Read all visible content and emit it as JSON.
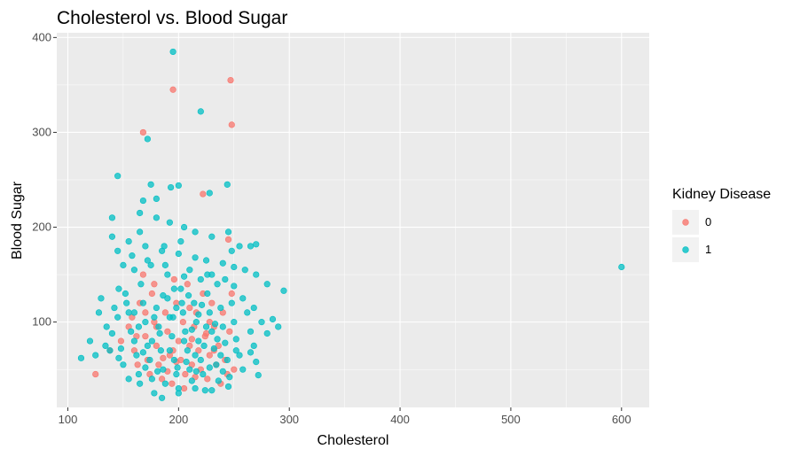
{
  "chart_data": {
    "type": "scatter",
    "title": "Cholesterol vs. Blood Sugar",
    "xlabel": "Cholesterol",
    "ylabel": "Blood Sugar",
    "xlim": [
      90,
      625
    ],
    "ylim": [
      10,
      405
    ],
    "x_ticks": [
      100,
      200,
      300,
      400,
      500,
      600
    ],
    "y_ticks": [
      100,
      200,
      300,
      400
    ],
    "grid": true,
    "legend": {
      "title": "Kidney Disease",
      "position": "right",
      "entries": [
        {
          "label": "0",
          "color": "#F8766D"
        },
        {
          "label": "1",
          "color": "#00BFC4"
        }
      ]
    },
    "series": [
      {
        "name": "0",
        "color": "#F8766D",
        "points": [
          [
            168,
            300
          ],
          [
            195,
            345
          ],
          [
            247,
            355
          ],
          [
            248,
            308
          ],
          [
            222,
            235
          ],
          [
            245,
            187
          ],
          [
            125,
            45
          ],
          [
            138,
            70
          ],
          [
            148,
            80
          ],
          [
            155,
            95
          ],
          [
            158,
            105
          ],
          [
            160,
            70
          ],
          [
            163,
            55
          ],
          [
            165,
            120
          ],
          [
            168,
            150
          ],
          [
            170,
            85
          ],
          [
            172,
            60
          ],
          [
            174,
            45
          ],
          [
            176,
            130
          ],
          [
            178,
            100
          ],
          [
            180,
            75
          ],
          [
            182,
            55
          ],
          [
            185,
            40
          ],
          [
            188,
            110
          ],
          [
            190,
            90
          ],
          [
            192,
            65
          ],
          [
            194,
            35
          ],
          [
            196,
            145
          ],
          [
            198,
            120
          ],
          [
            200,
            80
          ],
          [
            202,
            60
          ],
          [
            204,
            100
          ],
          [
            206,
            45
          ],
          [
            208,
            140
          ],
          [
            210,
            75
          ],
          [
            212,
            55
          ],
          [
            214,
            95
          ],
          [
            216,
            110
          ],
          [
            218,
            70
          ],
          [
            220,
            50
          ],
          [
            222,
            130
          ],
          [
            224,
            85
          ],
          [
            226,
            40
          ],
          [
            228,
            65
          ],
          [
            230,
            120
          ],
          [
            232,
            95
          ],
          [
            234,
            55
          ],
          [
            236,
            75
          ],
          [
            238,
            35
          ],
          [
            240,
            110
          ],
          [
            242,
            60
          ],
          [
            244,
            45
          ],
          [
            246,
            90
          ],
          [
            248,
            130
          ],
          [
            250,
            50
          ],
          [
            180,
            95
          ],
          [
            195,
            70
          ],
          [
            210,
            115
          ],
          [
            225,
            88
          ],
          [
            205,
            30
          ],
          [
            186,
            62
          ],
          [
            198,
            58
          ],
          [
            215,
            42
          ],
          [
            232,
            70
          ],
          [
            170,
            110
          ],
          [
            162,
            85
          ],
          [
            228,
            100
          ],
          [
            212,
            82
          ],
          [
            190,
            48
          ],
          [
            178,
            140
          ]
        ]
      },
      {
        "name": "1",
        "color": "#00BFC4",
        "points": [
          [
            195,
            385
          ],
          [
            220,
            322
          ],
          [
            172,
            293
          ],
          [
            145,
            254
          ],
          [
            244,
            245
          ],
          [
            200,
            244
          ],
          [
            193,
            242
          ],
          [
            228,
            236
          ],
          [
            140,
            210
          ],
          [
            168,
            228
          ],
          [
            175,
            245
          ],
          [
            165,
            215
          ],
          [
            180,
            210
          ],
          [
            192,
            205
          ],
          [
            205,
            200
          ],
          [
            215,
            195
          ],
          [
            230,
            190
          ],
          [
            245,
            195
          ],
          [
            255,
            180
          ],
          [
            265,
            180
          ],
          [
            270,
            182
          ],
          [
            140,
            190
          ],
          [
            155,
            185
          ],
          [
            170,
            180
          ],
          [
            185,
            175
          ],
          [
            200,
            172
          ],
          [
            215,
            168
          ],
          [
            225,
            165
          ],
          [
            240,
            162
          ],
          [
            250,
            158
          ],
          [
            260,
            155
          ],
          [
            270,
            150
          ],
          [
            280,
            140
          ],
          [
            295,
            133
          ],
          [
            600,
            158
          ],
          [
            112,
            62
          ],
          [
            120,
            80
          ],
          [
            125,
            65
          ],
          [
            130,
            125
          ],
          [
            135,
            95
          ],
          [
            140,
            88
          ],
          [
            142,
            115
          ],
          [
            145,
            105
          ],
          [
            148,
            72
          ],
          [
            150,
            55
          ],
          [
            152,
            130
          ],
          [
            155,
            110
          ],
          [
            157,
            90
          ],
          [
            160,
            80
          ],
          [
            162,
            65
          ],
          [
            164,
            45
          ],
          [
            166,
            140
          ],
          [
            168,
            120
          ],
          [
            170,
            100
          ],
          [
            172,
            75
          ],
          [
            174,
            60
          ],
          [
            176,
            40
          ],
          [
            178,
            25
          ],
          [
            180,
            115
          ],
          [
            182,
            95
          ],
          [
            184,
            70
          ],
          [
            186,
            50
          ],
          [
            188,
            35
          ],
          [
            190,
            125
          ],
          [
            192,
            105
          ],
          [
            194,
            85
          ],
          [
            196,
            60
          ],
          [
            198,
            45
          ],
          [
            200,
            30
          ],
          [
            202,
            135
          ],
          [
            204,
            110
          ],
          [
            206,
            90
          ],
          [
            208,
            70
          ],
          [
            210,
            50
          ],
          [
            212,
            38
          ],
          [
            214,
            120
          ],
          [
            216,
            100
          ],
          [
            218,
            80
          ],
          [
            220,
            60
          ],
          [
            222,
            45
          ],
          [
            224,
            28
          ],
          [
            226,
            130
          ],
          [
            228,
            110
          ],
          [
            230,
            90
          ],
          [
            232,
            72
          ],
          [
            234,
            55
          ],
          [
            236,
            38
          ],
          [
            238,
            115
          ],
          [
            240,
            95
          ],
          [
            242,
            78
          ],
          [
            244,
            60
          ],
          [
            246,
            42
          ],
          [
            248,
            120
          ],
          [
            250,
            100
          ],
          [
            252,
            82
          ],
          [
            255,
            65
          ],
          [
            258,
            50
          ],
          [
            262,
            110
          ],
          [
            265,
            90
          ],
          [
            268,
            75
          ],
          [
            270,
            58
          ],
          [
            272,
            44
          ],
          [
            275,
            100
          ],
          [
            280,
            88
          ],
          [
            285,
            103
          ],
          [
            290,
            95
          ],
          [
            160,
            155
          ],
          [
            175,
            160
          ],
          [
            190,
            150
          ],
          [
            205,
            148
          ],
          [
            220,
            145
          ],
          [
            235,
            140
          ],
          [
            250,
            138
          ],
          [
            165,
            35
          ],
          [
            185,
            20
          ],
          [
            200,
            25
          ],
          [
            215,
            30
          ],
          [
            230,
            28
          ],
          [
            245,
            32
          ],
          [
            155,
            40
          ],
          [
            150,
            160
          ],
          [
            145,
            175
          ],
          [
            158,
            170
          ],
          [
            172,
            165
          ],
          [
            188,
            160
          ],
          [
            210,
            155
          ],
          [
            226,
            150
          ],
          [
            242,
            145
          ],
          [
            138,
            70
          ],
          [
            146,
            62
          ],
          [
            170,
            52
          ],
          [
            195,
            105
          ],
          [
            205,
            80
          ],
          [
            215,
            65
          ],
          [
            225,
            95
          ],
          [
            235,
            82
          ],
          [
            198,
            115
          ],
          [
            183,
            88
          ],
          [
            212,
            92
          ],
          [
            178,
            105
          ],
          [
            192,
            70
          ],
          [
            207,
            58
          ],
          [
            223,
            75
          ],
          [
            238,
            65
          ],
          [
            164,
            95
          ],
          [
            176,
            80
          ],
          [
            160,
            110
          ],
          [
            203,
            120
          ],
          [
            218,
            108
          ],
          [
            233,
            98
          ],
          [
            186,
            128
          ],
          [
            196,
            135
          ],
          [
            209,
            128
          ],
          [
            221,
            118
          ],
          [
            168,
            68
          ],
          [
            181,
            48
          ],
          [
            199,
            52
          ],
          [
            216,
            48
          ],
          [
            228,
            52
          ],
          [
            240,
            48
          ],
          [
            252,
            70
          ],
          [
            265,
            68
          ],
          [
            134,
            75
          ],
          [
            128,
            110
          ],
          [
            146,
            135
          ],
          [
            153,
            120
          ],
          [
            187,
            180
          ],
          [
            202,
            185
          ],
          [
            165,
            195
          ],
          [
            180,
            230
          ],
          [
            230,
            150
          ],
          [
            248,
            175
          ],
          [
            258,
            125
          ],
          [
            268,
            115
          ]
        ]
      }
    ]
  }
}
